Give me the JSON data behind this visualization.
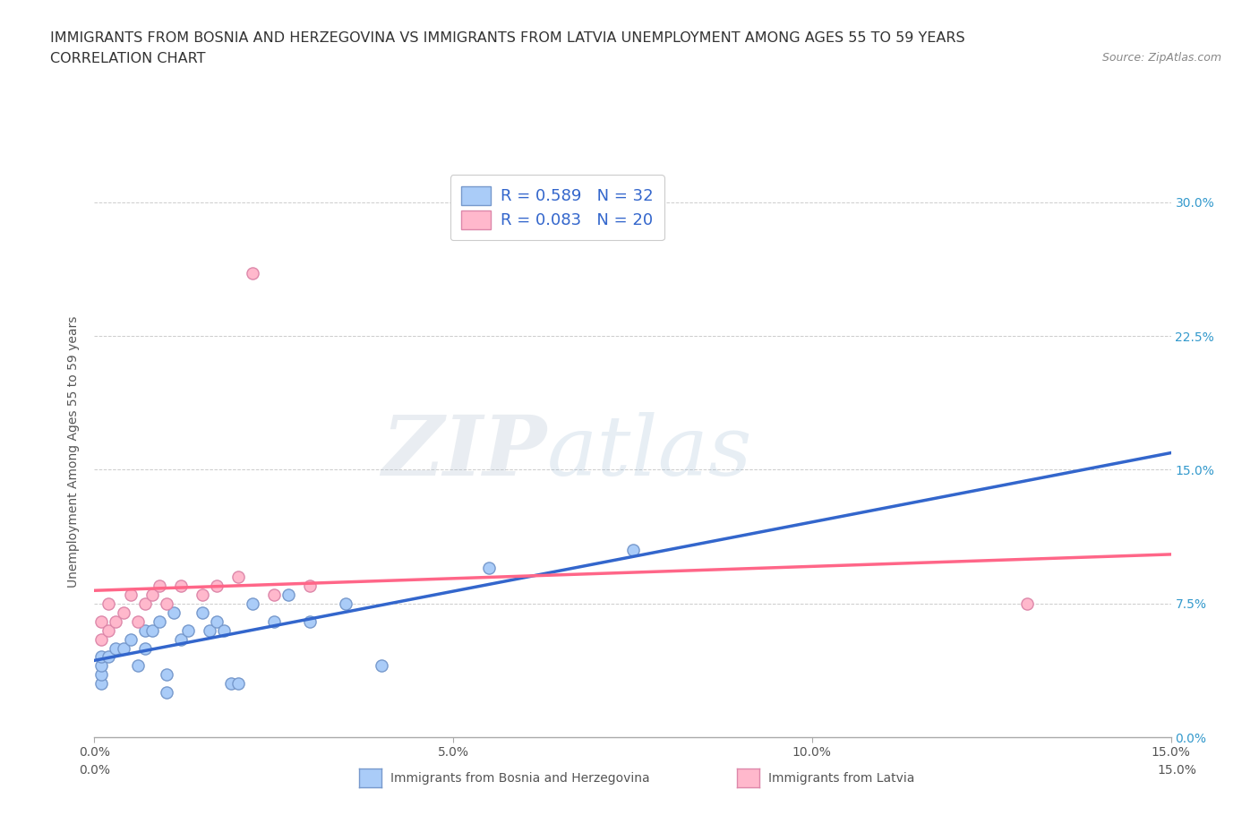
{
  "title_line1": "IMMIGRANTS FROM BOSNIA AND HERZEGOVINA VS IMMIGRANTS FROM LATVIA UNEMPLOYMENT AMONG AGES 55 TO 59 YEARS",
  "title_line2": "CORRELATION CHART",
  "source": "Source: ZipAtlas.com",
  "ylabel": "Unemployment Among Ages 55 to 59 years",
  "xlim": [
    0.0,
    0.15
  ],
  "ylim": [
    0.0,
    0.32
  ],
  "xticks": [
    0.0,
    0.05,
    0.1,
    0.15
  ],
  "xtick_labels": [
    "0.0%",
    "5.0%",
    "10.0%",
    "15.0%"
  ],
  "ytick_values": [
    0.0,
    0.075,
    0.15,
    0.225,
    0.3
  ],
  "ytick_labels_right": [
    "0.0%",
    "7.5%",
    "15.0%",
    "22.5%",
    "30.0%"
  ],
  "watermark_zip": "ZIP",
  "watermark_atlas": "atlas",
  "bosnia_color": "#aaccf8",
  "bosnia_edge": "#7799cc",
  "latvia_color": "#ffb8cc",
  "latvia_edge": "#dd88aa",
  "bosnia_line_color": "#3366cc",
  "latvia_line_color": "#ff6688",
  "legend_label_bosnia": "R = 0.589   N = 32",
  "legend_label_latvia": "R = 0.083   N = 20",
  "bosnia_series_label": "Immigrants from Bosnia and Herzegovina",
  "latvia_series_label": "Immigrants from Latvia",
  "bosnia_x": [
    0.001,
    0.001,
    0.001,
    0.001,
    0.002,
    0.003,
    0.004,
    0.005,
    0.006,
    0.007,
    0.007,
    0.008,
    0.009,
    0.01,
    0.01,
    0.011,
    0.012,
    0.013,
    0.015,
    0.016,
    0.017,
    0.018,
    0.019,
    0.02,
    0.022,
    0.025,
    0.027,
    0.03,
    0.035,
    0.04,
    0.055,
    0.075
  ],
  "bosnia_y": [
    0.03,
    0.035,
    0.04,
    0.045,
    0.045,
    0.05,
    0.05,
    0.055,
    0.04,
    0.05,
    0.06,
    0.06,
    0.065,
    0.025,
    0.035,
    0.07,
    0.055,
    0.06,
    0.07,
    0.06,
    0.065,
    0.06,
    0.03,
    0.03,
    0.075,
    0.065,
    0.08,
    0.065,
    0.075,
    0.04,
    0.095,
    0.105
  ],
  "latvia_x": [
    0.001,
    0.001,
    0.002,
    0.002,
    0.003,
    0.004,
    0.005,
    0.006,
    0.007,
    0.008,
    0.009,
    0.01,
    0.012,
    0.015,
    0.017,
    0.02,
    0.022,
    0.025,
    0.03,
    0.13
  ],
  "latvia_y": [
    0.055,
    0.065,
    0.06,
    0.075,
    0.065,
    0.07,
    0.08,
    0.065,
    0.075,
    0.08,
    0.085,
    0.075,
    0.085,
    0.08,
    0.085,
    0.09,
    0.26,
    0.08,
    0.085,
    0.075
  ],
  "grid_color": "#cccccc",
  "background_color": "#ffffff",
  "title_fontsize": 11.5,
  "axis_label_fontsize": 10,
  "tick_fontsize": 10,
  "legend_fontsize": 13
}
